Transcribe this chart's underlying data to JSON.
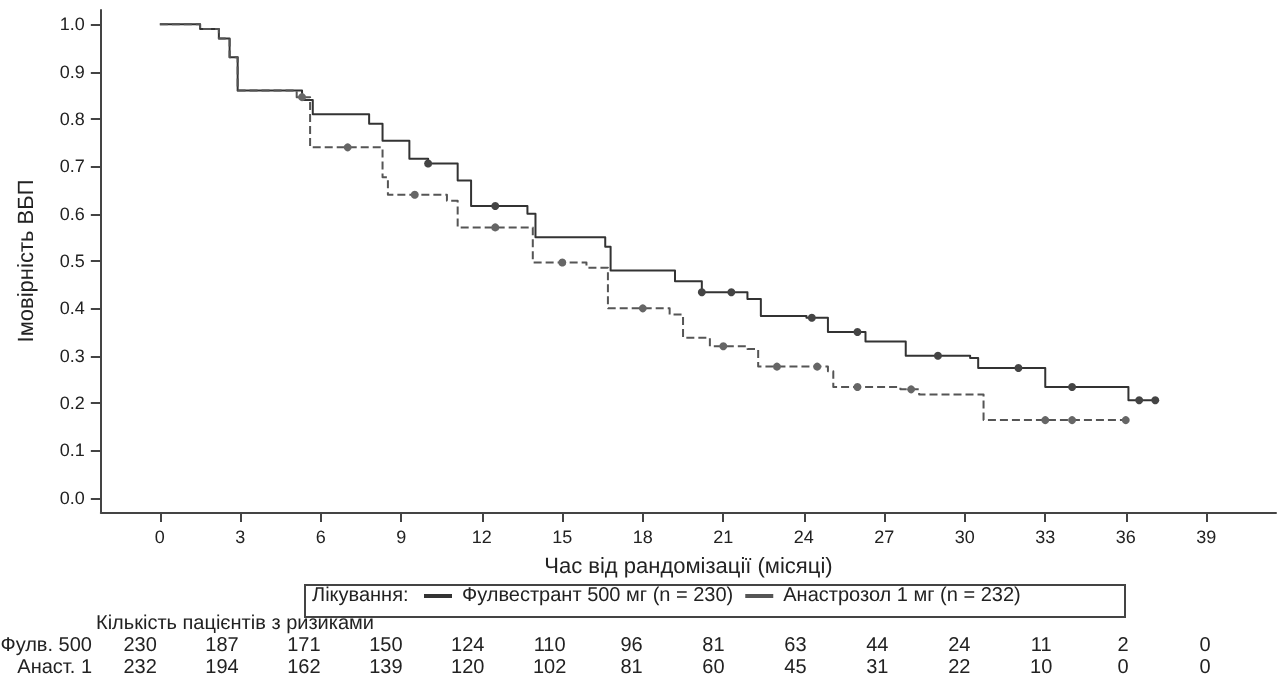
{
  "chart_data": {
    "type": "step",
    "xlabel": "Час від рандомізації (місяці)",
    "ylabel": "Імовірність ВБП",
    "legend_title": "Лікування:",
    "legend": "bottom",
    "marker": "none",
    "grid": false,
    "xlim": [
      -2.2,
      41.6
    ],
    "xticks": [
      0,
      3,
      6,
      9,
      12,
      15,
      18,
      21,
      24,
      27,
      30,
      33,
      36,
      39
    ],
    "ylim": [
      -0.03,
      1.03
    ],
    "yticks": [
      {
        "value": 0,
        "label": "0.0"
      },
      {
        "value": 0.1,
        "label": "0.1"
      },
      {
        "value": 0.2,
        "label": "0.2"
      },
      {
        "value": 0.3,
        "label": "0.3"
      },
      {
        "value": 0.4,
        "label": "0.4"
      },
      {
        "value": 0.5,
        "label": "0.5"
      },
      {
        "value": 0.6,
        "label": "0.6"
      },
      {
        "value": 0.7,
        "label": "0.7"
      },
      {
        "value": 0.8,
        "label": "0.8"
      },
      {
        "value": 0.9,
        "label": "0.9"
      },
      {
        "value": 1,
        "label": "1.0"
      }
    ],
    "series": [
      {
        "name": "Фулвестрант 500 мг (n = 230)",
        "color": "#333333",
        "line_style": "solid",
        "x": [
          0,
          1.5,
          2.2,
          2.6,
          2.9,
          5.3,
          5.7,
          7.8,
          8.3,
          9.3,
          10,
          11.1,
          11.6,
          13.7,
          14,
          16.6,
          16.8,
          19.2,
          20.2,
          21.9,
          22.4,
          24.1,
          24.9,
          26.3,
          27.8,
          30.2,
          30.5,
          33.0,
          36.1,
          37.1
        ],
        "values": [
          1,
          0.99,
          0.97,
          0.93,
          0.86,
          0.84,
          0.81,
          0.79,
          0.754,
          0.716,
          0.706,
          0.67,
          0.616,
          0.6,
          0.55,
          0.53,
          0.48,
          0.457,
          0.434,
          0.42,
          0.384,
          0.38,
          0.35,
          0.33,
          0.3,
          0.295,
          0.274,
          0.234,
          0.206,
          0.206
        ]
      },
      {
        "name": "Анастрозол 1 мг (n = 232)",
        "color": "#555555",
        "line_style": "dashed",
        "x": [
          0,
          1.5,
          2.2,
          2.6,
          2.9,
          5.1,
          5.6,
          8.3,
          8.5,
          10.7,
          11.1,
          13.9,
          15.9,
          16.7,
          19,
          19.5,
          20.5,
          21.9,
          22.3,
          24.9,
          25.1,
          27.6,
          28.3,
          30.7,
          36.1
        ],
        "values": [
          1,
          0.99,
          0.97,
          0.93,
          0.86,
          0.846,
          0.74,
          0.677,
          0.64,
          0.627,
          0.571,
          0.497,
          0.486,
          0.4,
          0.387,
          0.338,
          0.32,
          0.314,
          0.277,
          0.267,
          0.234,
          0.229,
          0.218,
          0.164,
          0.164
        ]
      },
      {
        "type": "scatter",
        "marker": "circle",
        "color": "#444444",
        "x": [
          10,
          12.5,
          20.2,
          21.3,
          24.3,
          26,
          29,
          32,
          34,
          36.5,
          37.1
        ],
        "values": [
          0.706,
          0.616,
          0.434,
          0.434,
          0.38,
          0.35,
          0.3,
          0.274,
          0.234,
          0.206,
          0.206
        ]
      },
      {
        "type": "scatter",
        "marker": "circle",
        "color": "#666666",
        "x": [
          5.3,
          7,
          9.5,
          12.5,
          15,
          18,
          21,
          23,
          24.5,
          26,
          28,
          33,
          34,
          36
        ],
        "values": [
          0.846,
          0.74,
          0.64,
          0.571,
          0.497,
          0.4,
          0.32,
          0.277,
          0.277,
          0.234,
          0.229,
          0.164,
          0.164,
          0.164
        ]
      }
    ],
    "annotations": [
      "Кількість пацієнтів з ризиками",
      "Фулв. 500",
      "230",
      "187",
      "171",
      "150",
      "124",
      "110",
      "96",
      "81",
      "63",
      "44",
      "24",
      "11",
      "2",
      "0",
      "Анаст. 1",
      "232",
      "194",
      "162",
      "139",
      "120",
      "102",
      "81",
      "60",
      "45",
      "31",
      "22",
      "10",
      "0",
      "0"
    ]
  }
}
